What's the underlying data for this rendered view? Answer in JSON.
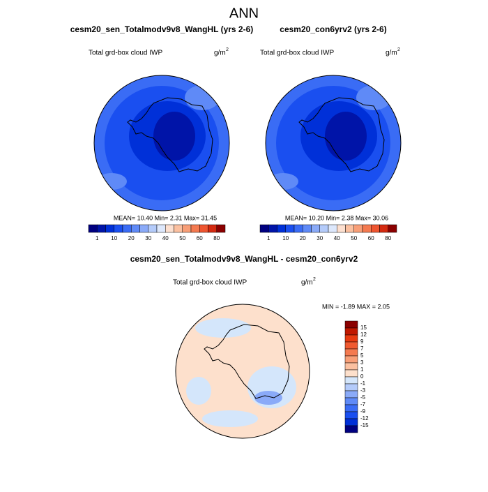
{
  "title": "ANN",
  "panels": [
    {
      "title": "cesm20_sen_Totalmodv9v8_WangHL (yrs 2-6)",
      "variable": "Total grd-box cloud IWP",
      "units": "g/m",
      "units_sup": "2",
      "stats": "MEAN=  10.40   Min=   2.31   Max=  31.45"
    },
    {
      "title": "cesm20_con6yrv2 (yrs 2-6)",
      "variable": "Total grd-box cloud IWP",
      "units": "g/m",
      "units_sup": "2",
      "stats": "MEAN=  10.20   Min=   2.38   Max=  30.06"
    }
  ],
  "colorbar": {
    "colors": [
      "#000080",
      "#0014a8",
      "#0030d8",
      "#1a4ff0",
      "#3a6cf5",
      "#5f8af7",
      "#8aaaf8",
      "#b4cbfa",
      "#dde8fc",
      "#fde0d0",
      "#fbc0a0",
      "#f89f78",
      "#f47a50",
      "#ee5530",
      "#d42a10",
      "#8b0000"
    ],
    "labels": [
      "1",
      "10",
      "20",
      "30",
      "40",
      "50",
      "60",
      "80"
    ]
  },
  "diff": {
    "title": "cesm20_sen_Totalmodv9v8_WangHL - cesm20_con6yrv2",
    "variable": "Total grd-box cloud IWP",
    "units": "g/m",
    "units_sup": "2",
    "stats": "MIN =  -1.89 MAX =   2.05",
    "colorbar": {
      "colors": [
        "#8b0000",
        "#c01800",
        "#e83a10",
        "#f05a30",
        "#f47a50",
        "#f89f78",
        "#fbc0a0",
        "#fde0cc",
        "#d4e6fb",
        "#b4cbfa",
        "#8aaaf8",
        "#5f8af7",
        "#3a6cf5",
        "#1a4ff0",
        "#0030d8",
        "#000080"
      ],
      "labels": [
        "15",
        "12",
        "9",
        "7",
        "5",
        "3",
        "1",
        "0",
        "-1",
        "-3",
        "-5",
        "-7",
        "-9",
        "-12",
        "-15"
      ]
    }
  }
}
